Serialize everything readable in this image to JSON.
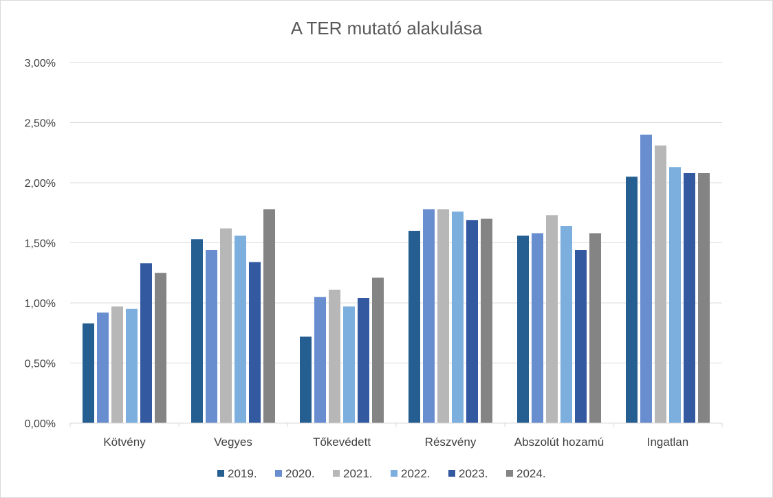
{
  "chart_data": {
    "type": "bar",
    "title": "A TER mutató alakulása",
    "xlabel": "",
    "ylabel": "",
    "ylim": [
      0,
      0.03
    ],
    "yticks": [
      0,
      0.005,
      0.01,
      0.015,
      0.02,
      0.025,
      0.03
    ],
    "ytick_labels": [
      "0,00%",
      "0,50%",
      "1,00%",
      "1,50%",
      "2,00%",
      "2,50%",
      "3,00%"
    ],
    "grid": true,
    "legend_position": "bottom",
    "categories": [
      "Kötvény",
      "Vegyes",
      "Tőkevédett",
      "Részvény",
      "Abszolút hozamú",
      "Ingatlan"
    ],
    "series": [
      {
        "name": "2019.",
        "color": "#255e91",
        "values": [
          0.0083,
          0.0153,
          0.0072,
          0.016,
          0.0156,
          0.0205
        ]
      },
      {
        "name": "2020.",
        "color": "#698ed0",
        "values": [
          0.0092,
          0.0144,
          0.0105,
          0.0178,
          0.0158,
          0.024
        ]
      },
      {
        "name": "2021.",
        "color": "#b7b7b7",
        "values": [
          0.0097,
          0.0162,
          0.0111,
          0.0178,
          0.0173,
          0.0231
        ]
      },
      {
        "name": "2022.",
        "color": "#7cafdd",
        "values": [
          0.0095,
          0.0156,
          0.0097,
          0.0176,
          0.0164,
          0.0213
        ]
      },
      {
        "name": "2023.",
        "color": "#335aa1",
        "values": [
          0.0133,
          0.0134,
          0.0104,
          0.0169,
          0.0144,
          0.0208
        ]
      },
      {
        "name": "2024.",
        "color": "#848484",
        "values": [
          0.0125,
          0.0178,
          0.0121,
          0.017,
          0.0158,
          0.0208
        ]
      }
    ]
  }
}
